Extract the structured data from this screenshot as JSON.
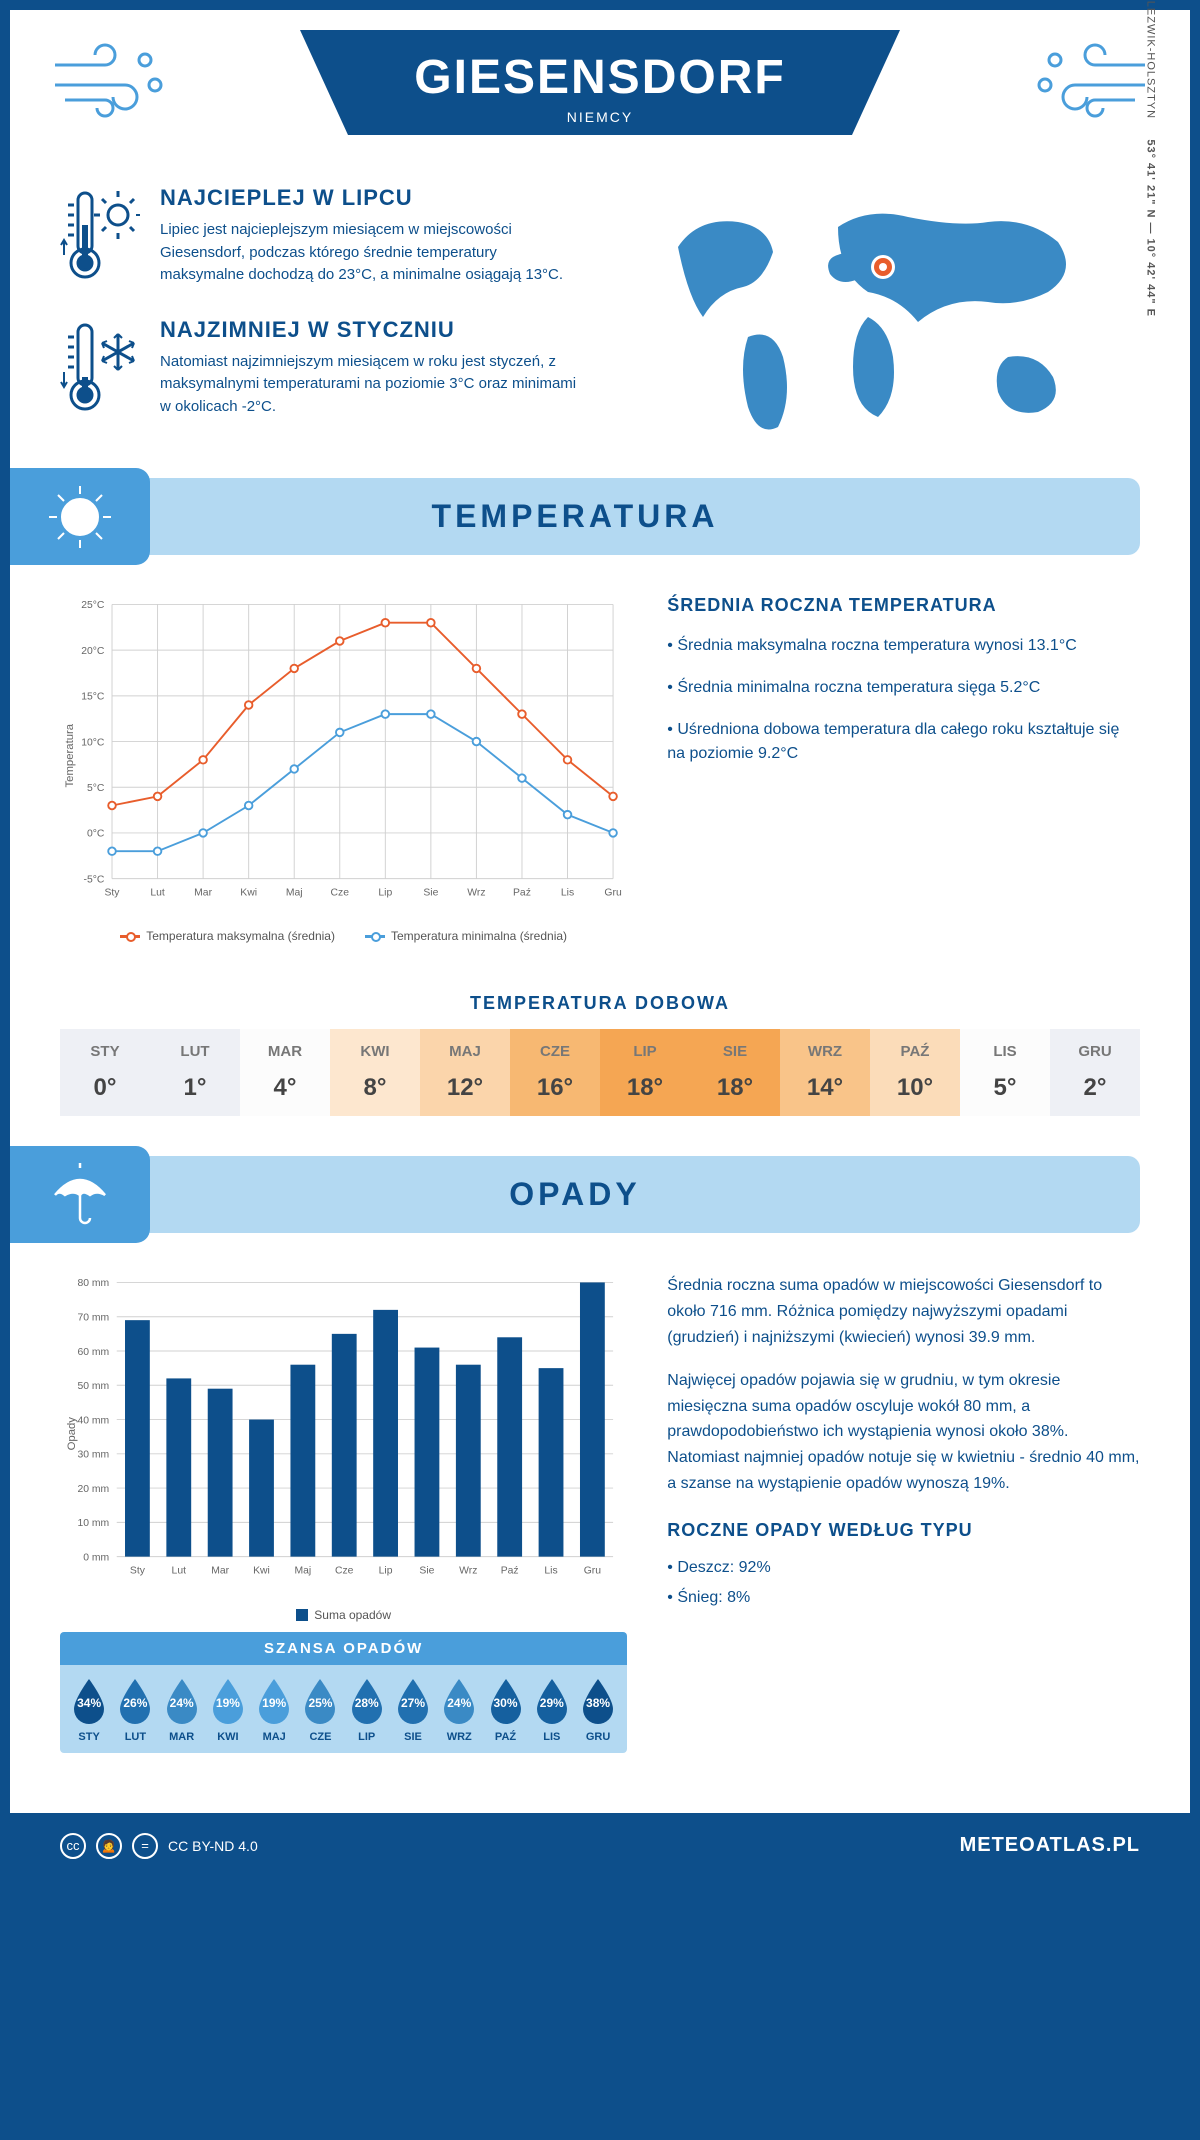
{
  "header": {
    "title": "GIESENSDORF",
    "subtitle": "NIEMCY"
  },
  "coords": {
    "lat": "53° 41' 21\" N",
    "lon": "10° 42' 44\" E",
    "region": "SZLEZWIK-HOLSZTYN"
  },
  "facts": {
    "hot": {
      "title": "NAJCIEPLEJ W LIPCU",
      "text": "Lipiec jest najcieplejszym miesiącem w miejscowości Giesensdorf, podczas którego średnie temperatury maksymalne dochodzą do 23°C, a minimalne osiągają 13°C."
    },
    "cold": {
      "title": "NAJZIMNIEJ W STYCZNIU",
      "text": "Natomiast najzimniejszym miesiącem w roku jest styczeń, z maksymalnymi temperaturami na poziomie 3°C oraz minimami w okolicach -2°C."
    }
  },
  "temperature": {
    "section_title": "TEMPERATURA",
    "chart": {
      "type": "line",
      "months": [
        "Sty",
        "Lut",
        "Mar",
        "Kwi",
        "Maj",
        "Cze",
        "Lip",
        "Sie",
        "Wrz",
        "Paź",
        "Lis",
        "Gru"
      ],
      "series": [
        {
          "name": "Temperatura maksymalna (średnia)",
          "color": "#e85d2c",
          "values": [
            3,
            4,
            8,
            14,
            18,
            21,
            23,
            23,
            18,
            13,
            8,
            4
          ]
        },
        {
          "name": "Temperatura minimalna (średnia)",
          "color": "#4a9edb",
          "values": [
            -2,
            -2,
            0,
            3,
            7,
            11,
            13,
            13,
            10,
            6,
            2,
            0
          ]
        }
      ],
      "y_axis": {
        "label": "Temperatura",
        "min": -5,
        "max": 25,
        "step": 5,
        "unit": "°C"
      },
      "grid_color": "#d0d0d0",
      "background": "#ffffff",
      "line_width": 2,
      "marker": "circle",
      "marker_size": 4
    },
    "stats": {
      "title": "ŚREDNIA ROCZNA TEMPERATURA",
      "items": [
        "Średnia maksymalna roczna temperatura wynosi 13.1°C",
        "Średnia minimalna roczna temperatura sięga 5.2°C",
        "Uśredniona dobowa temperatura dla całego roku kształtuje się na poziomie 9.2°C"
      ]
    },
    "daily": {
      "title": "TEMPERATURA DOBOWA",
      "months": [
        "STY",
        "LUT",
        "MAR",
        "KWI",
        "MAJ",
        "CZE",
        "LIP",
        "SIE",
        "WRZ",
        "PAŹ",
        "LIS",
        "GRU"
      ],
      "values": [
        "0°",
        "1°",
        "4°",
        "8°",
        "12°",
        "16°",
        "18°",
        "18°",
        "14°",
        "10°",
        "5°",
        "2°"
      ],
      "cell_colors": [
        "#eef0f5",
        "#eef0f5",
        "#fcfcfc",
        "#fde7cf",
        "#fbd5ab",
        "#f7b872",
        "#f5a653",
        "#f5a653",
        "#f9c489",
        "#fbdcb9",
        "#fcfcfc",
        "#eef0f5"
      ]
    }
  },
  "precipitation": {
    "section_title": "OPADY",
    "chart": {
      "type": "bar",
      "months": [
        "Sty",
        "Lut",
        "Mar",
        "Kwi",
        "Maj",
        "Cze",
        "Lip",
        "Sie",
        "Wrz",
        "Paź",
        "Lis",
        "Gru"
      ],
      "values": [
        69,
        52,
        49,
        40,
        56,
        65,
        72,
        61,
        56,
        64,
        55,
        80
      ],
      "bar_color": "#0d4f8b",
      "y_axis": {
        "label": "Opady",
        "min": 0,
        "max": 80,
        "step": 10,
        "unit": " mm"
      },
      "grid_color": "#d0d0d0",
      "bar_width": 0.6,
      "legend": "Suma opadów"
    },
    "text": {
      "p1": "Średnia roczna suma opadów w miejscowości Giesensdorf to około 716 mm. Różnica pomiędzy najwyższymi opadami (grudzień) i najniższymi (kwiecień) wynosi 39.9 mm.",
      "p2": "Najwięcej opadów pojawia się w grudniu, w tym okresie miesięczna suma opadów oscyluje wokół 80 mm, a prawdopodobieństwo ich wystąpienia wynosi około 38%. Natomiast najmniej opadów notuje się w kwietniu - średnio 40 mm, a szanse na wystąpienie opadów wynoszą 19%."
    },
    "chance": {
      "title": "SZANSA OPADÓW",
      "months": [
        "STY",
        "LUT",
        "MAR",
        "KWI",
        "MAJ",
        "CZE",
        "LIP",
        "SIE",
        "WRZ",
        "PAŹ",
        "LIS",
        "GRU"
      ],
      "values": [
        "34%",
        "26%",
        "24%",
        "19%",
        "19%",
        "25%",
        "28%",
        "27%",
        "24%",
        "30%",
        "29%",
        "38%"
      ],
      "drop_colors": [
        "#0d4f8b",
        "#2170b0",
        "#3a8ac5",
        "#4a9edb",
        "#4a9edb",
        "#3a8ac5",
        "#2170b0",
        "#2170b0",
        "#3a8ac5",
        "#15609f",
        "#15609f",
        "#0d4f8b"
      ]
    },
    "by_type": {
      "title": "ROCZNE OPADY WEDŁUG TYPU",
      "items": [
        "Deszcz: 92%",
        "Śnieg: 8%"
      ]
    }
  },
  "footer": {
    "license": "CC BY-ND 4.0",
    "site": "METEOATLAS.PL"
  },
  "colors": {
    "primary": "#0d4f8b",
    "light_blue": "#b3d9f2",
    "mid_blue": "#4a9edb",
    "orange": "#e85d2c"
  }
}
